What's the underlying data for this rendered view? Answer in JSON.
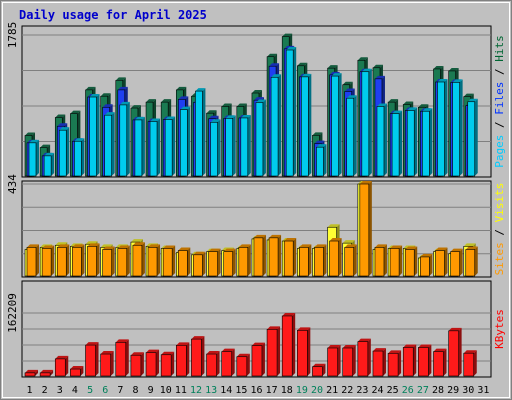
{
  "chart_data": {
    "type": "bar",
    "title": "Daily usage for April 2025",
    "categories": [
      "1",
      "2",
      "3",
      "4",
      "5",
      "6",
      "7",
      "8",
      "9",
      "10",
      "11",
      "12",
      "13",
      "14",
      "15",
      "16",
      "17",
      "18",
      "19",
      "20",
      "21",
      "22",
      "23",
      "24",
      "25",
      "26",
      "27",
      "28",
      "29",
      "30",
      "31"
    ],
    "weekend_days": [
      "5",
      "6",
      "12",
      "13",
      "19",
      "20",
      "26",
      "27"
    ],
    "panels": [
      {
        "id": "hits-files-pages",
        "ymax_label": "1785",
        "ymax": 1785,
        "legend": [
          {
            "label": "Pages",
            "color": "#00ccff"
          },
          {
            "label": "Files",
            "color": "#0033ff"
          },
          {
            "label": "Hits",
            "color": "#006633"
          }
        ],
        "series": [
          {
            "name": "Hits",
            "color": "#1a7a52",
            "values": [
              512,
              360,
              740,
              790,
              1090,
              1010,
              1210,
              860,
              935,
              935,
              1090,
              1010,
              795,
              880,
              880,
              1050,
              1510,
              1765,
              1395,
              515,
              1365,
              1155,
              1465,
              1370,
              935,
              905,
              870,
              1355,
              1330,
              1005,
              0
            ]
          },
          {
            "name": "Files",
            "color": "#1f3ff0",
            "values": [
              420,
              255,
              630,
              440,
              1000,
              870,
              1090,
              710,
              690,
              715,
              970,
              930,
              725,
              730,
              735,
              960,
              1390,
              1610,
              1255,
              410,
              1280,
              1070,
              1320,
              1230,
              790,
              830,
              820,
              1190,
              1185,
              890,
              0
            ]
          },
          {
            "name": "Pages",
            "color": "#00ccee",
            "values": [
              420,
              255,
              580,
              440,
              1000,
              770,
              900,
              710,
              690,
              715,
              840,
              1075,
              680,
              730,
              735,
              930,
              1250,
              1595,
              1255,
              365,
              1265,
              985,
              1320,
              880,
              790,
              830,
              820,
              1190,
              1185,
              940,
              0
            ]
          }
        ]
      },
      {
        "id": "visits-sites",
        "ymax_label": "434",
        "ymax": 434,
        "legend": [
          {
            "label": "Sites",
            "color": "#ff9900"
          },
          {
            "label": "Visits",
            "color": "#ffff00"
          }
        ],
        "series": [
          {
            "name": "Visits",
            "color": "#ffff33",
            "values": [
              125,
              135,
              145,
              140,
              150,
              135,
              135,
              160,
              140,
              130,
              110,
              100,
              115,
              120,
              130,
              175,
              170,
              165,
              130,
              130,
              230,
              155,
              434,
              125,
              130,
              130,
              85,
              115,
              105,
              140,
              0
            ]
          },
          {
            "name": "Sites",
            "color": "#ff9900",
            "values": [
              135,
              130,
              135,
              135,
              140,
              125,
              130,
              145,
              135,
              130,
              120,
              100,
              115,
              115,
              135,
              180,
              180,
              165,
              135,
              135,
              165,
              135,
              434,
              135,
              130,
              125,
              90,
              120,
              115,
              125,
              0
            ]
          }
        ]
      },
      {
        "id": "kbytes",
        "ymax_label": "162209",
        "ymax": 162209,
        "legend": [
          {
            "label": "KBytes",
            "color": "#ff0000"
          }
        ],
        "series": [
          {
            "name": "KBytes",
            "color": "#ff1a1a",
            "values": [
              8100,
              8100,
              44100,
              17900,
              79600,
              56500,
              86600,
              53500,
              60200,
              54700,
              78900,
              95000,
              56500,
              62800,
              49600,
              78100,
              120200,
              154600,
              117600,
              23900,
              72100,
              72100,
              88400,
              64200,
              58200,
              73500,
              73500,
              62800,
              116300,
              58700,
              0
            ]
          }
        ]
      }
    ]
  }
}
